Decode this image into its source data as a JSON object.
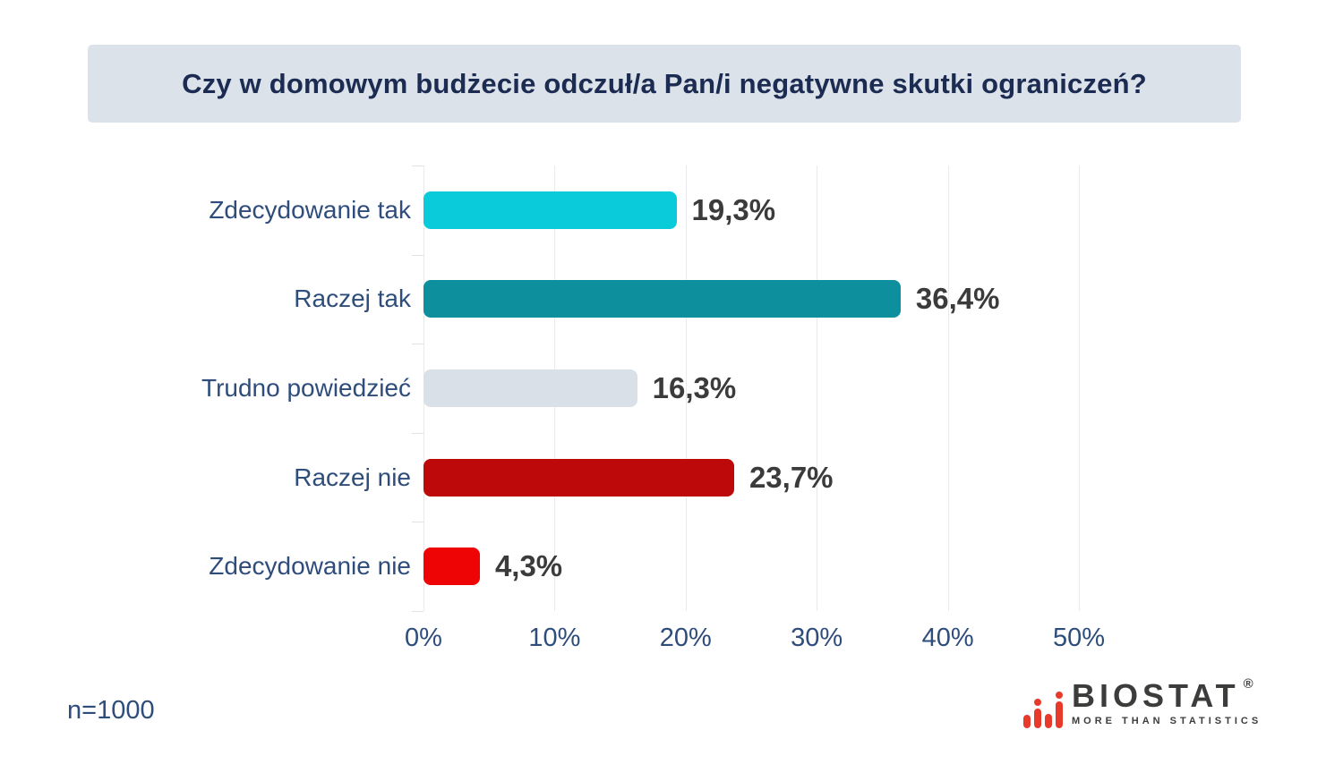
{
  "title": "Czy w domowym budżecie odczuł/a Pan/i negatywne skutki ograniczeń?",
  "sample_note": "n=1000",
  "chart_data": {
    "type": "bar",
    "orientation": "horizontal",
    "title": "Czy w domowym budżecie odczuł/a Pan/i negatywne skutki ograniczeń?",
    "categories": [
      "Zdecydowanie tak",
      "Raczej tak",
      "Trudno powiedzieć",
      "Raczej nie",
      "Zdecydowanie nie"
    ],
    "values": [
      19.3,
      36.4,
      16.3,
      23.7,
      4.3
    ],
    "value_labels": [
      "19,3%",
      "36,4%",
      "16,3%",
      "23,7%",
      "4,3%"
    ],
    "bar_colors": [
      "#0acbda",
      "#0d8f9e",
      "#d9e0e8",
      "#bd0909",
      "#ee0404"
    ],
    "x_ticks": [
      "0%",
      "10%",
      "20%",
      "30%",
      "40%",
      "50%"
    ],
    "xlim": [
      0,
      50
    ],
    "xlabel": "",
    "ylabel": "",
    "grid": "vertical",
    "legend": "none",
    "sample_size": "n=1000"
  },
  "logo": {
    "brand": "BIOSTAT",
    "registered_mark": "®",
    "tagline": "MORE THAN STATISTICS",
    "icon": "bar-chart-icon",
    "accent_color": "#e83a2b",
    "text_color": "#3c3c3b"
  },
  "colors": {
    "title_bg": "#dce2e9",
    "title_text": "#1b2b52",
    "label_text": "#2e4d7b",
    "value_text": "#3b3b3b",
    "gridline": "#e8ebee",
    "background": "#ffffff"
  }
}
